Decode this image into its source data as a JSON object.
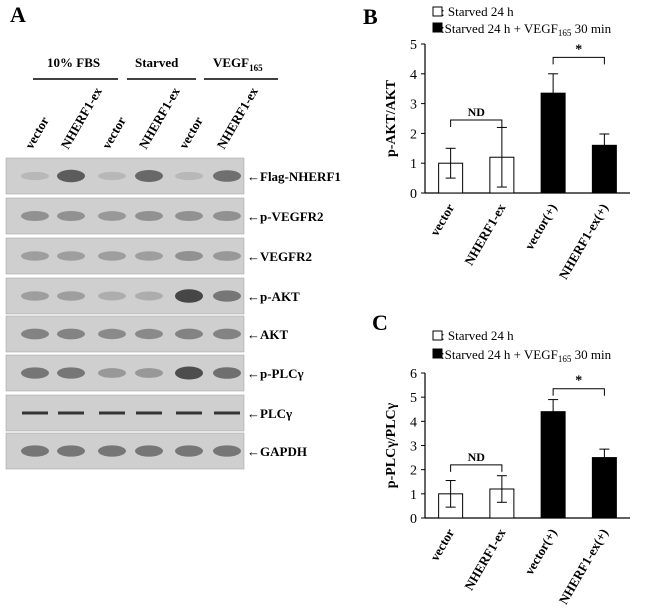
{
  "panels": {
    "A": "A",
    "B": "B",
    "C": "C"
  },
  "blot": {
    "groups": [
      "10% FBS",
      "Starved",
      "VEGF",
      "165"
    ],
    "lanes": [
      "vector",
      "NHERF1-ex",
      "vector",
      "NHERF1-ex",
      "vector",
      "NHERF1-ex"
    ],
    "bands": [
      "←Flag-NHERF1",
      "←p-VEGFR2",
      "←VEGFR2",
      "←p-AKT",
      "←AKT",
      "←p-PLCγ",
      "←PLCγ",
      "←GAPDH"
    ],
    "band_intensity": [
      [
        0.05,
        0.75,
        0.05,
        0.65,
        0.05,
        0.6
      ],
      [
        0.35,
        0.35,
        0.3,
        0.35,
        0.35,
        0.35
      ],
      [
        0.25,
        0.25,
        0.25,
        0.25,
        0.35,
        0.3
      ],
      [
        0.25,
        0.25,
        0.15,
        0.15,
        0.9,
        0.55
      ],
      [
        0.45,
        0.45,
        0.4,
        0.4,
        0.45,
        0.45
      ],
      [
        0.55,
        0.55,
        0.3,
        0.3,
        0.85,
        0.6
      ],
      [
        0.85,
        0.85,
        0.85,
        0.85,
        0.85,
        0.85
      ],
      [
        0.55,
        0.55,
        0.55,
        0.55,
        0.55,
        0.55
      ]
    ],
    "colors": {
      "background": "#cfcfcf",
      "band": "#1a1a1a"
    }
  },
  "legend": {
    "starved": ": Starved 24 h",
    "vegf_prefix": ":Starved 24 h +  VEGF",
    "vegf_sub": "165",
    "vegf_suffix": " 30 min"
  },
  "chart_data": [
    {
      "type": "bar",
      "panel": "B",
      "categories": [
        "vector",
        "NHERF1-ex",
        "vector(+)",
        "NHERF1-ex(+)"
      ],
      "values": [
        1.0,
        1.2,
        3.35,
        1.6
      ],
      "errors": [
        0.5,
        1.0,
        0.65,
        0.38
      ],
      "fills": [
        "#ffffff",
        "#ffffff",
        "#000000",
        "#000000"
      ],
      "ylabel": "p-AKT/AKT",
      "ylim": [
        0,
        5
      ],
      "yticks": [
        0,
        1,
        2,
        3,
        4,
        5
      ],
      "annotations": [
        {
          "from": 0,
          "to": 1,
          "label": "ND",
          "y": 2.45
        },
        {
          "from": 2,
          "to": 3,
          "label": "*",
          "y": 4.55
        }
      ]
    },
    {
      "type": "bar",
      "panel": "C",
      "categories": [
        "vector",
        "NHERF1-ex",
        "vector(+)",
        "NHERF1-ex(+)"
      ],
      "values": [
        1.0,
        1.2,
        4.4,
        2.5
      ],
      "errors": [
        0.55,
        0.55,
        0.5,
        0.35
      ],
      "fills": [
        "#ffffff",
        "#ffffff",
        "#000000",
        "#000000"
      ],
      "ylabel": "p-PLCγ/PLCγ",
      "ylim": [
        0,
        6
      ],
      "yticks": [
        0,
        1,
        2,
        3,
        4,
        5,
        6
      ],
      "annotations": [
        {
          "from": 0,
          "to": 1,
          "label": "ND",
          "y": 2.2
        },
        {
          "from": 2,
          "to": 3,
          "label": "*",
          "y": 5.35
        }
      ]
    }
  ]
}
